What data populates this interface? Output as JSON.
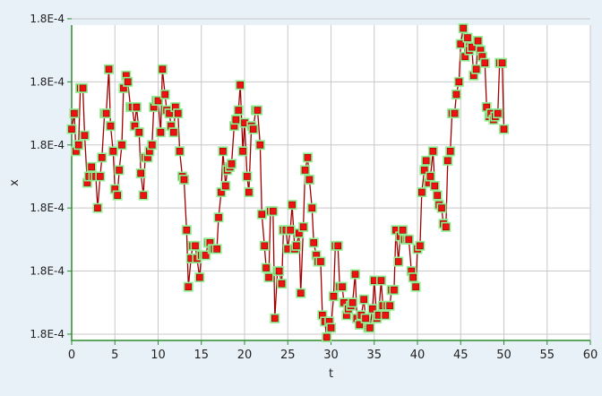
{
  "chart_data": {
    "type": "line",
    "title": "",
    "xlabel": "t",
    "ylabel": "x",
    "xlim": [
      0,
      60
    ],
    "x_ticks": [
      0,
      5,
      10,
      15,
      20,
      25,
      30,
      35,
      40,
      45,
      50,
      55,
      60
    ],
    "ylim": [
      0.0,
      1.0
    ],
    "y_ticks": [
      0.02,
      0.22,
      0.42,
      0.62,
      0.82,
      1.02
    ],
    "y_tick_labels": [
      "1.8E-4",
      "1.8E-4",
      "1.8E-4",
      "1.8E-4",
      "1.8E-4",
      "1.8E-4"
    ],
    "grid": true,
    "legend": "none",
    "series": [
      {
        "line_color": "#a00000",
        "marker_color": "#ee1111",
        "marker_halo_color": "#90ee90",
        "points": [
          [
            0.0,
            0.67
          ],
          [
            0.3,
            0.72
          ],
          [
            0.5,
            0.6
          ],
          [
            0.8,
            0.62
          ],
          [
            1.0,
            0.8
          ],
          [
            1.3,
            0.8
          ],
          [
            1.5,
            0.65
          ],
          [
            1.8,
            0.5
          ],
          [
            2.0,
            0.52
          ],
          [
            2.3,
            0.55
          ],
          [
            2.5,
            0.52
          ],
          [
            2.8,
            0.52
          ],
          [
            3.0,
            0.42
          ],
          [
            3.3,
            0.52
          ],
          [
            3.5,
            0.58
          ],
          [
            3.8,
            0.72
          ],
          [
            4.0,
            0.72
          ],
          [
            4.3,
            0.86
          ],
          [
            4.5,
            0.68
          ],
          [
            4.8,
            0.6
          ],
          [
            5.0,
            0.48
          ],
          [
            5.3,
            0.46
          ],
          [
            5.5,
            0.54
          ],
          [
            5.8,
            0.62
          ],
          [
            6.0,
            0.8
          ],
          [
            6.3,
            0.84
          ],
          [
            6.5,
            0.82
          ],
          [
            6.8,
            0.74
          ],
          [
            7.0,
            0.74
          ],
          [
            7.3,
            0.68
          ],
          [
            7.5,
            0.74
          ],
          [
            7.8,
            0.66
          ],
          [
            8.0,
            0.53
          ],
          [
            8.3,
            0.46
          ],
          [
            8.5,
            0.58
          ],
          [
            8.8,
            0.58
          ],
          [
            9.0,
            0.6
          ],
          [
            9.3,
            0.62
          ],
          [
            9.5,
            0.74
          ],
          [
            9.8,
            0.76
          ],
          [
            10.0,
            0.76
          ],
          [
            10.3,
            0.66
          ],
          [
            10.5,
            0.86
          ],
          [
            10.8,
            0.78
          ],
          [
            11.0,
            0.73
          ],
          [
            11.3,
            0.72
          ],
          [
            11.5,
            0.68
          ],
          [
            11.8,
            0.66
          ],
          [
            12.0,
            0.74
          ],
          [
            12.3,
            0.72
          ],
          [
            12.5,
            0.6
          ],
          [
            12.8,
            0.52
          ],
          [
            13.0,
            0.51
          ],
          [
            13.3,
            0.35
          ],
          [
            13.5,
            0.17
          ],
          [
            13.8,
            0.26
          ],
          [
            14.0,
            0.3
          ],
          [
            14.3,
            0.3
          ],
          [
            14.5,
            0.26
          ],
          [
            14.8,
            0.2
          ],
          [
            15.0,
            0.27
          ],
          [
            15.3,
            0.27
          ],
          [
            15.5,
            0.27
          ],
          [
            15.8,
            0.31
          ],
          [
            16.0,
            0.31
          ],
          [
            16.3,
            0.29
          ],
          [
            16.5,
            0.29
          ],
          [
            16.8,
            0.29
          ],
          [
            17.0,
            0.39
          ],
          [
            17.3,
            0.47
          ],
          [
            17.5,
            0.6
          ],
          [
            17.8,
            0.49
          ],
          [
            18.0,
            0.54
          ],
          [
            18.3,
            0.55
          ],
          [
            18.5,
            0.56
          ],
          [
            18.8,
            0.68
          ],
          [
            19.0,
            0.7
          ],
          [
            19.3,
            0.73
          ],
          [
            19.5,
            0.81
          ],
          [
            19.8,
            0.6
          ],
          [
            20.0,
            0.69
          ],
          [
            20.3,
            0.52
          ],
          [
            20.5,
            0.47
          ],
          [
            20.8,
            0.68
          ],
          [
            21.0,
            0.67
          ],
          [
            21.3,
            0.73
          ],
          [
            21.5,
            0.73
          ],
          [
            21.8,
            0.62
          ],
          [
            22.0,
            0.4
          ],
          [
            22.3,
            0.3
          ],
          [
            22.5,
            0.23
          ],
          [
            22.8,
            0.2
          ],
          [
            23.0,
            0.41
          ],
          [
            23.3,
            0.41
          ],
          [
            23.5,
            0.07
          ],
          [
            23.8,
            0.22
          ],
          [
            24.0,
            0.22
          ],
          [
            24.3,
            0.18
          ],
          [
            24.5,
            0.35
          ],
          [
            24.8,
            0.35
          ],
          [
            25.0,
            0.29
          ],
          [
            25.3,
            0.35
          ],
          [
            25.5,
            0.43
          ],
          [
            25.8,
            0.29
          ],
          [
            26.0,
            0.3
          ],
          [
            26.3,
            0.34
          ],
          [
            26.5,
            0.15
          ],
          [
            26.8,
            0.36
          ],
          [
            27.0,
            0.54
          ],
          [
            27.3,
            0.58
          ],
          [
            27.5,
            0.51
          ],
          [
            27.8,
            0.42
          ],
          [
            28.0,
            0.31
          ],
          [
            28.3,
            0.27
          ],
          [
            28.5,
            0.25
          ],
          [
            28.8,
            0.25
          ],
          [
            29.0,
            0.08
          ],
          [
            29.3,
            0.06
          ],
          [
            29.5,
            0.01
          ],
          [
            29.8,
            0.06
          ],
          [
            30.0,
            0.04
          ],
          [
            30.3,
            0.14
          ],
          [
            30.5,
            0.3
          ],
          [
            30.8,
            0.3
          ],
          [
            31.0,
            0.17
          ],
          [
            31.3,
            0.17
          ],
          [
            31.5,
            0.12
          ],
          [
            31.8,
            0.08
          ],
          [
            32.0,
            0.1
          ],
          [
            32.3,
            0.11
          ],
          [
            32.5,
            0.12
          ],
          [
            32.8,
            0.21
          ],
          [
            33.0,
            0.07
          ],
          [
            33.3,
            0.05
          ],
          [
            33.5,
            0.08
          ],
          [
            33.8,
            0.13
          ],
          [
            34.0,
            0.07
          ],
          [
            34.3,
            0.04
          ],
          [
            34.5,
            0.04
          ],
          [
            34.8,
            0.1
          ],
          [
            35.0,
            0.19
          ],
          [
            35.3,
            0.07
          ],
          [
            35.5,
            0.08
          ],
          [
            35.8,
            0.19
          ],
          [
            36.0,
            0.11
          ],
          [
            36.3,
            0.08
          ],
          [
            36.5,
            0.11
          ],
          [
            36.8,
            0.11
          ],
          [
            37.0,
            0.16
          ],
          [
            37.3,
            0.16
          ],
          [
            37.5,
            0.35
          ],
          [
            37.8,
            0.25
          ],
          [
            38.0,
            0.33
          ],
          [
            38.3,
            0.35
          ],
          [
            38.5,
            0.32
          ],
          [
            38.8,
            0.32
          ],
          [
            39.0,
            0.32
          ],
          [
            39.3,
            0.22
          ],
          [
            39.5,
            0.2
          ],
          [
            39.8,
            0.17
          ],
          [
            40.0,
            0.29
          ],
          [
            40.3,
            0.3
          ],
          [
            40.5,
            0.47
          ],
          [
            40.8,
            0.54
          ],
          [
            41.0,
            0.57
          ],
          [
            41.3,
            0.5
          ],
          [
            41.5,
            0.52
          ],
          [
            41.8,
            0.6
          ],
          [
            42.0,
            0.49
          ],
          [
            42.3,
            0.46
          ],
          [
            42.5,
            0.43
          ],
          [
            42.8,
            0.42
          ],
          [
            43.0,
            0.37
          ],
          [
            43.3,
            0.36
          ],
          [
            43.5,
            0.57
          ],
          [
            43.8,
            0.6
          ],
          [
            44.0,
            0.72
          ],
          [
            44.3,
            0.72
          ],
          [
            44.5,
            0.78
          ],
          [
            44.8,
            0.82
          ],
          [
            45.0,
            0.94
          ],
          [
            45.3,
            0.99
          ],
          [
            45.5,
            0.9
          ],
          [
            45.8,
            0.96
          ],
          [
            46.0,
            0.92
          ],
          [
            46.3,
            0.93
          ],
          [
            46.5,
            0.84
          ],
          [
            46.8,
            0.86
          ],
          [
            47.0,
            0.95
          ],
          [
            47.3,
            0.92
          ],
          [
            47.5,
            0.9
          ],
          [
            47.8,
            0.88
          ],
          [
            48.0,
            0.74
          ],
          [
            48.3,
            0.71
          ],
          [
            48.5,
            0.72
          ],
          [
            48.8,
            0.7
          ],
          [
            49.0,
            0.71
          ],
          [
            49.3,
            0.72
          ],
          [
            49.5,
            0.88
          ],
          [
            49.8,
            0.88
          ],
          [
            50.0,
            0.67
          ]
        ]
      }
    ]
  }
}
